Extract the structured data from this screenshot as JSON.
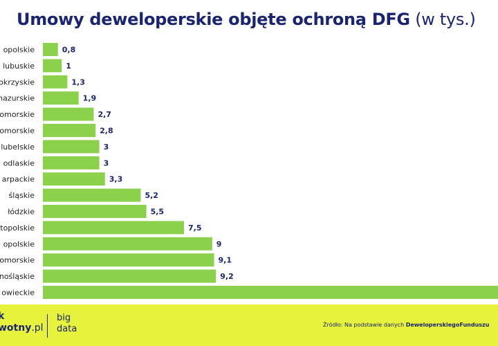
{
  "title": {
    "bold": "Umowy deweloperskie objęte ochroną DFG",
    "light": "(w tys.)"
  },
  "colors": {
    "bar": "#8cd14b",
    "title": "#1a2470",
    "footer_bg": "#e6f23c",
    "label": "#1a2470"
  },
  "chart_data": {
    "type": "bar",
    "orientation": "horizontal",
    "title": "Umowy deweloperskie objęte ochroną DFG (w tys.)",
    "categories": [
      "opolskie",
      "lubuskie",
      "okrzyskie",
      "nazurskie",
      "omorskie",
      "omorskie",
      "lubelskie",
      "odlaskie",
      "arpackie",
      "śląskie",
      "łódzkie",
      "topolskie",
      "opolskie",
      "omorskie",
      "nośląskie",
      "owieckie"
    ],
    "values": [
      0.8,
      1,
      1.3,
      1.9,
      2.7,
      2.8,
      3,
      3,
      3.3,
      5.2,
      5.5,
      7.5,
      9,
      9.1,
      9.2,
      null
    ],
    "value_labels": [
      "0,8",
      "1",
      "1,3",
      "1,9",
      "2,7",
      "2,8",
      "3",
      "3",
      "3,3",
      "5,2",
      "5,5",
      "7,5",
      "9",
      "9,1",
      "9,2",
      ""
    ],
    "xlim": [
      0,
      24
    ],
    "grid": false,
    "legend": "none"
  },
  "footer": {
    "logo_line1": "k",
    "logo_line2_bold": "wotny",
    "logo_line2_light": ".pl",
    "bigdata_line1": "big",
    "bigdata_line2": "data",
    "source_prefix": "Źródło: Na podstawie danych ",
    "source_bold": "DeweloperskiegoFunduszu"
  }
}
